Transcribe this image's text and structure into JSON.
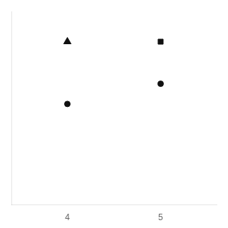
{
  "chart_data": {
    "type": "scatter",
    "xlim": [
      3.4,
      5.6
    ],
    "xticks": [
      4,
      5
    ],
    "ylim": [
      0.0,
      1.15
    ],
    "yticks": [],
    "grid": false,
    "tick_labels": "x",
    "series": [
      {
        "color": "#111111",
        "marker": "triangle",
        "x": [
          4.0
        ],
        "values": [
          0.97
        ]
      },
      {
        "color": "#111111",
        "marker": "circle",
        "x": [
          4.0
        ],
        "values": [
          0.6
        ]
      },
      {
        "color": "#111111",
        "marker": "square",
        "x": [
          5.0
        ],
        "values": [
          0.97
        ]
      },
      {
        "color": "#111111",
        "marker": "circle",
        "x": [
          5.0
        ],
        "values": [
          0.72
        ]
      }
    ]
  }
}
